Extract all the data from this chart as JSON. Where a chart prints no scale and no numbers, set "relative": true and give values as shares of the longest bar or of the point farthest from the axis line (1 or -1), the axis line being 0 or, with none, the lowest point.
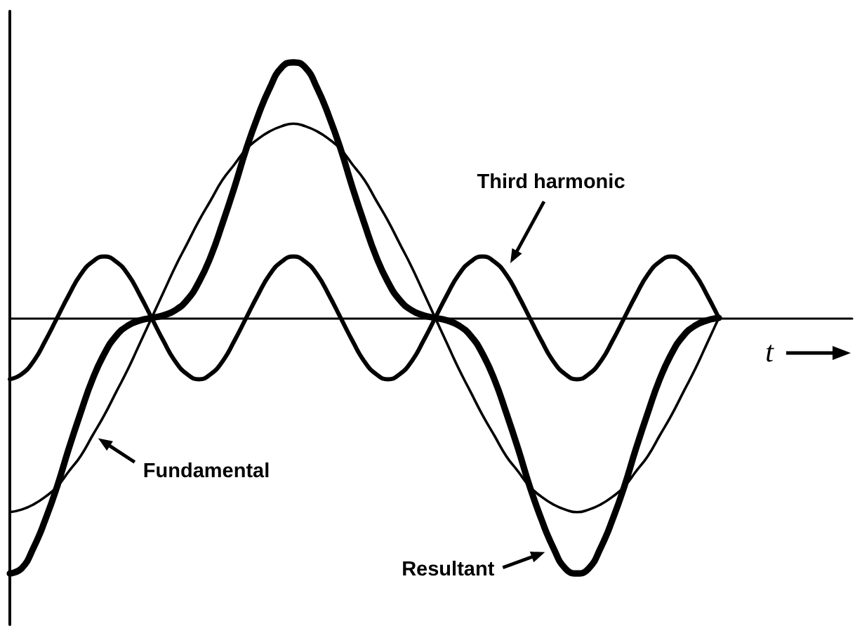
{
  "chart_data": {
    "type": "line",
    "xlabel": "t",
    "relative": true,
    "categories": [
      null,
      null,
      null,
      null,
      null,
      null,
      null,
      null,
      null,
      null,
      null,
      null,
      null,
      null,
      null,
      null,
      null,
      null,
      null,
      null,
      null,
      null,
      null,
      null,
      null,
      null,
      null,
      null,
      null,
      null,
      null,
      null,
      null,
      null,
      null,
      null,
      null,
      null,
      null,
      null,
      null,
      null,
      null,
      null,
      null,
      null,
      null,
      null,
      null,
      null,
      null,
      null,
      null,
      null,
      null,
      null,
      null,
      null,
      null,
      null,
      null
    ],
    "series": [
      {
        "name": "Fundamental",
        "color": "#000000",
        "values": [
          -0.76,
          -0.75,
          -0.73,
          -0.7,
          -0.66,
          -0.6,
          -0.54,
          -0.46,
          -0.38,
          -0.29,
          -0.2,
          -0.1,
          0,
          0.1,
          0.2,
          0.29,
          0.38,
          0.46,
          0.54,
          0.6,
          0.66,
          0.7,
          0.73,
          0.75,
          0.76,
          0.75,
          0.73,
          0.7,
          0.66,
          0.6,
          0.54,
          0.46,
          0.38,
          0.29,
          0.2,
          0.1,
          0,
          -0.1,
          -0.2,
          -0.29,
          -0.38,
          -0.46,
          -0.54,
          -0.6,
          -0.66,
          -0.7,
          -0.73,
          -0.75,
          -0.76,
          -0.75,
          -0.73,
          -0.7,
          -0.66,
          -0.6,
          -0.54,
          -0.46,
          -0.38,
          -0.29,
          -0.2,
          -0.1,
          0
        ]
      },
      {
        "name": "Third harmonic",
        "color": "#000000",
        "values": [
          -0.24,
          -0.22,
          -0.17,
          -0.09,
          0,
          0.09,
          0.17,
          0.22,
          0.24,
          0.22,
          0.17,
          0.09,
          0,
          -0.09,
          -0.17,
          -0.22,
          -0.24,
          -0.22,
          -0.17,
          -0.09,
          0,
          0.09,
          0.17,
          0.22,
          0.24,
          0.22,
          0.17,
          0.09,
          0,
          -0.09,
          -0.17,
          -0.22,
          -0.24,
          -0.22,
          -0.17,
          -0.09,
          0,
          0.09,
          0.17,
          0.22,
          0.24,
          0.22,
          0.17,
          0.09,
          0,
          -0.09,
          -0.17,
          -0.22,
          -0.24,
          -0.22,
          -0.17,
          -0.09,
          0,
          0.09,
          0.17,
          0.22,
          0.24,
          0.22,
          0.17,
          0.09,
          0
        ]
      },
      {
        "name": "Resultant",
        "color": "#000000",
        "values": [
          -1.0,
          -0.98,
          -0.9,
          -0.79,
          -0.66,
          -0.51,
          -0.37,
          -0.24,
          -0.14,
          -0.07,
          -0.03,
          -0.01,
          0,
          0.01,
          0.03,
          0.07,
          0.14,
          0.24,
          0.37,
          0.51,
          0.66,
          0.79,
          0.9,
          0.98,
          1.0,
          0.98,
          0.9,
          0.79,
          0.66,
          0.51,
          0.37,
          0.24,
          0.14,
          0.07,
          0.03,
          0.01,
          0,
          -0.01,
          -0.03,
          -0.07,
          -0.14,
          -0.24,
          -0.37,
          -0.51,
          -0.66,
          -0.79,
          -0.9,
          -0.98,
          -1.0,
          -0.98,
          -0.9,
          -0.79,
          -0.66,
          -0.51,
          -0.37,
          -0.24,
          -0.14,
          -0.07,
          -0.03,
          -0.01,
          0
        ]
      }
    ]
  }
}
